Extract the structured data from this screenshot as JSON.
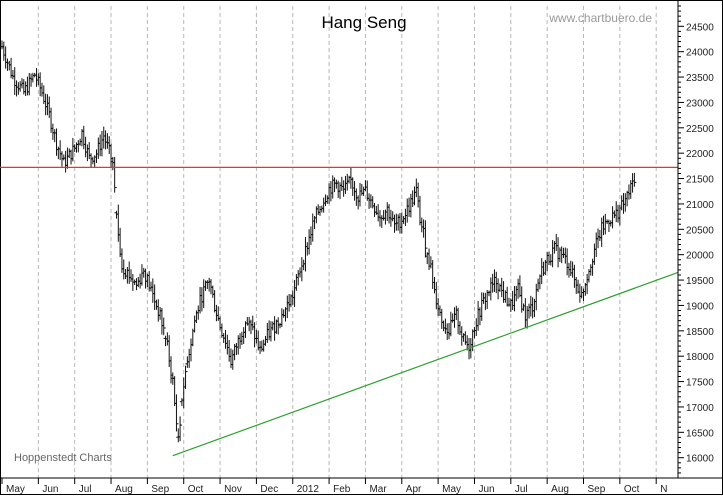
{
  "chart_data": {
    "type": "ohlc",
    "title": "Hang Seng",
    "watermark": "www.chartbuero.de",
    "source": "Hoppenstedt Charts",
    "ylim": [
      15600,
      24900
    ],
    "y_ticks": [
      16000,
      16500,
      17000,
      17500,
      18000,
      18500,
      19000,
      19500,
      20000,
      20500,
      21000,
      21500,
      22000,
      22500,
      23000,
      23500,
      24000,
      24500
    ],
    "x_range": [
      0,
      18.6
    ],
    "x_ticks": [
      {
        "pos": 0.0,
        "label": "May"
      },
      {
        "pos": 1.0,
        "label": "Jun"
      },
      {
        "pos": 2.0,
        "label": "Jul"
      },
      {
        "pos": 3.0,
        "label": "Aug"
      },
      {
        "pos": 4.0,
        "label": "Sep"
      },
      {
        "pos": 5.0,
        "label": "Oct"
      },
      {
        "pos": 6.0,
        "label": "Nov"
      },
      {
        "pos": 7.0,
        "label": "Dec"
      },
      {
        "pos": 8.0,
        "label": "2012"
      },
      {
        "pos": 9.0,
        "label": "Feb"
      },
      {
        "pos": 10.0,
        "label": "Mar"
      },
      {
        "pos": 11.0,
        "label": "Apr"
      },
      {
        "pos": 12.0,
        "label": "May"
      },
      {
        "pos": 13.0,
        "label": "Jun"
      },
      {
        "pos": 14.0,
        "label": "Jul"
      },
      {
        "pos": 15.0,
        "label": "Aug"
      },
      {
        "pos": 16.0,
        "label": "Sep"
      },
      {
        "pos": 17.0,
        "label": "Oct"
      },
      {
        "pos": 18.0,
        "label": "N"
      }
    ],
    "series_keypoints": [
      [
        0.0,
        24100
      ],
      [
        0.3,
        23500
      ],
      [
        0.6,
        23200
      ],
      [
        0.9,
        23550
      ],
      [
        1.1,
        23200
      ],
      [
        1.3,
        22750
      ],
      [
        1.5,
        22200
      ],
      [
        1.7,
        21800
      ],
      [
        2.0,
        22100
      ],
      [
        2.2,
        22400
      ],
      [
        2.4,
        21900
      ],
      [
        2.6,
        22000
      ],
      [
        2.8,
        22350
      ],
      [
        3.05,
        21800
      ],
      [
        3.15,
        20700
      ],
      [
        3.3,
        19800
      ],
      [
        3.5,
        19600
      ],
      [
        3.7,
        19400
      ],
      [
        3.9,
        19700
      ],
      [
        4.1,
        19300
      ],
      [
        4.3,
        18900
      ],
      [
        4.5,
        18400
      ],
      [
        4.7,
        17500
      ],
      [
        4.85,
        16300
      ],
      [
        4.95,
        17200
      ],
      [
        5.1,
        17900
      ],
      [
        5.3,
        18700
      ],
      [
        5.5,
        19200
      ],
      [
        5.7,
        19500
      ],
      [
        5.85,
        19000
      ],
      [
        6.0,
        18600
      ],
      [
        6.15,
        18300
      ],
      [
        6.3,
        17900
      ],
      [
        6.5,
        18300
      ],
      [
        6.7,
        18700
      ],
      [
        6.9,
        18500
      ],
      [
        7.1,
        18100
      ],
      [
        7.3,
        18400
      ],
      [
        7.5,
        18600
      ],
      [
        7.7,
        18800
      ],
      [
        8.0,
        19200
      ],
      [
        8.2,
        19700
      ],
      [
        8.4,
        20200
      ],
      [
        8.6,
        20700
      ],
      [
        8.8,
        21000
      ],
      [
        9.0,
        21300
      ],
      [
        9.2,
        21400
      ],
      [
        9.4,
        21250
      ],
      [
        9.6,
        21450
      ],
      [
        9.8,
        21150
      ],
      [
        10.0,
        21250
      ],
      [
        10.2,
        21000
      ],
      [
        10.4,
        20750
      ],
      [
        10.6,
        20900
      ],
      [
        10.8,
        20550
      ],
      [
        11.0,
        20700
      ],
      [
        11.2,
        20950
      ],
      [
        11.4,
        21250
      ],
      [
        11.5,
        20700
      ],
      [
        11.7,
        20100
      ],
      [
        11.9,
        19300
      ],
      [
        12.1,
        18700
      ],
      [
        12.3,
        18500
      ],
      [
        12.5,
        18800
      ],
      [
        12.7,
        18300
      ],
      [
        12.85,
        18200
      ],
      [
        13.0,
        18600
      ],
      [
        13.2,
        19000
      ],
      [
        13.4,
        19300
      ],
      [
        13.6,
        19500
      ],
      [
        13.8,
        19200
      ],
      [
        14.0,
        19000
      ],
      [
        14.2,
        19300
      ],
      [
        14.4,
        18800
      ],
      [
        14.6,
        19000
      ],
      [
        14.8,
        19600
      ],
      [
        15.0,
        19900
      ],
      [
        15.2,
        20100
      ],
      [
        15.4,
        20000
      ],
      [
        15.6,
        19800
      ],
      [
        15.8,
        19400
      ],
      [
        15.95,
        19200
      ],
      [
        16.1,
        19600
      ],
      [
        16.3,
        20100
      ],
      [
        16.5,
        20500
      ],
      [
        16.7,
        20700
      ],
      [
        16.9,
        20800
      ],
      [
        17.1,
        21000
      ],
      [
        17.3,
        21300
      ],
      [
        17.45,
        21650
      ]
    ],
    "resistance_line": {
      "y": 21720,
      "color": "#e8342c"
    },
    "support_line": {
      "from": [
        4.7,
        16040
      ],
      "to": [
        18.6,
        19650
      ],
      "color": "#2f9e2f"
    }
  }
}
